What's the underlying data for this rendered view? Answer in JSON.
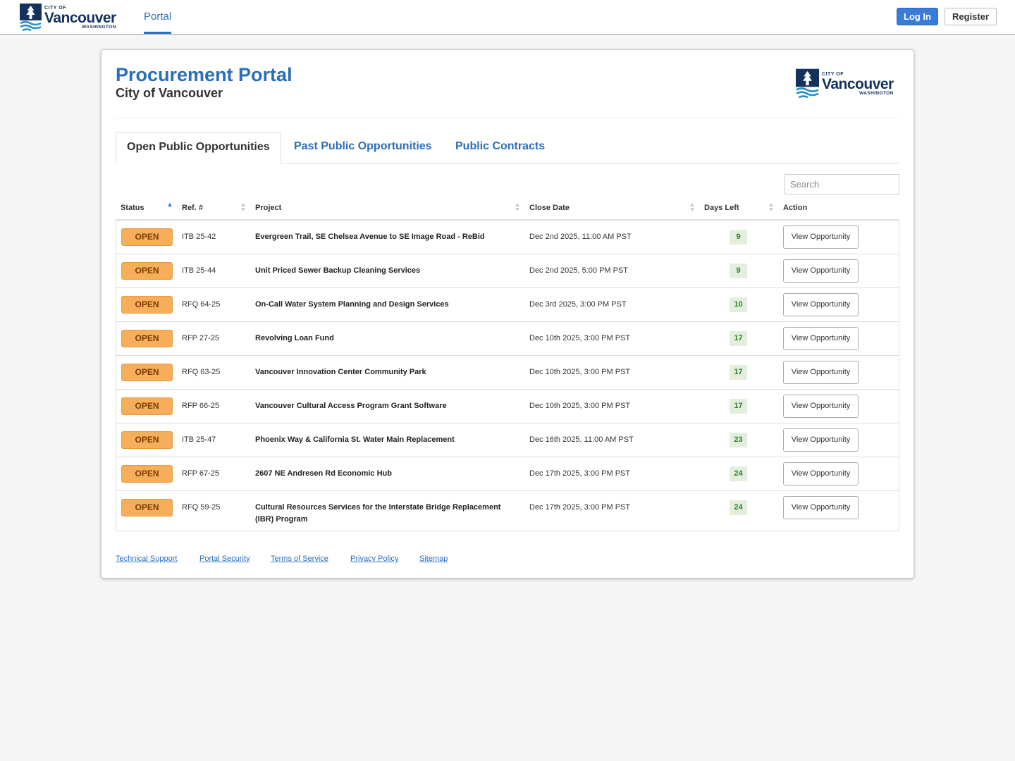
{
  "nav": {
    "logo": {
      "small": "CITY OF",
      "name": "Vancouver",
      "sub": "WASHINGTON"
    },
    "links": [
      "Portal"
    ],
    "login": "Log In",
    "register": "Register"
  },
  "header": {
    "title": "Procurement Portal",
    "subtitle": "City of Vancouver",
    "logo": {
      "small": "CITY OF",
      "name": "Vancouver",
      "sub": "WASHINGTON"
    }
  },
  "tabs": [
    "Open Public Opportunities",
    "Past Public Opportunities",
    "Public Contracts"
  ],
  "search": "Search",
  "table": {
    "columns": [
      "Status",
      "Ref. #",
      "Project",
      "Close Date",
      "Days Left",
      "Action"
    ],
    "rows": [
      [
        "OPEN",
        "ITB 25-42",
        "Evergreen Trail, SE Chelsea Avenue to SE Image Road - ReBid",
        "Dec 2nd 2025, 11:00 AM PST",
        9,
        "View Opportunity"
      ],
      [
        "OPEN",
        "ITB 25-44",
        "Unit Priced Sewer Backup Cleaning Services",
        "Dec 2nd 2025, 5:00 PM PST",
        9,
        "View Opportunity"
      ],
      [
        "OPEN",
        "RFQ 64-25",
        "On-Call Water System Planning and Design Services",
        "Dec 3rd 2025, 3:00 PM PST",
        10,
        "View Opportunity"
      ],
      [
        "OPEN",
        "RFP 27-25",
        "Revolving Loan Fund",
        "Dec 10th 2025, 3:00 PM PST",
        17,
        "View Opportunity"
      ],
      [
        "OPEN",
        "RFQ 63-25",
        "Vancouver Innovation Center Community Park",
        "Dec 10th 2025, 3:00 PM PST",
        17,
        "View Opportunity"
      ],
      [
        "OPEN",
        "RFP 66-25",
        "Vancouver Cultural Access Program Grant Software",
        "Dec 10th 2025, 3:00 PM PST",
        17,
        "View Opportunity"
      ],
      [
        "OPEN",
        "ITB 25-47",
        "Phoenix Way & California St. Water Main Replacement",
        "Dec 16th 2025, 11:00 AM PST",
        23,
        "View Opportunity"
      ],
      [
        "OPEN",
        "RFP 67-25",
        "2607 NE Andresen Rd Economic Hub",
        "Dec 17th 2025, 3:00 PM PST",
        24,
        "View Opportunity"
      ],
      [
        "OPEN",
        "RFQ 59-25",
        "Cultural Resources Services for the Interstate Bridge Replacement (IBR) Program",
        "Dec 17th 2025, 3:00 PM PST",
        24,
        "View Opportunity"
      ]
    ]
  },
  "footer": {
    "links": [
      "Technical Support",
      "Portal Security",
      "Terms of Service",
      "Privacy Policy",
      "Sitemap"
    ]
  }
}
